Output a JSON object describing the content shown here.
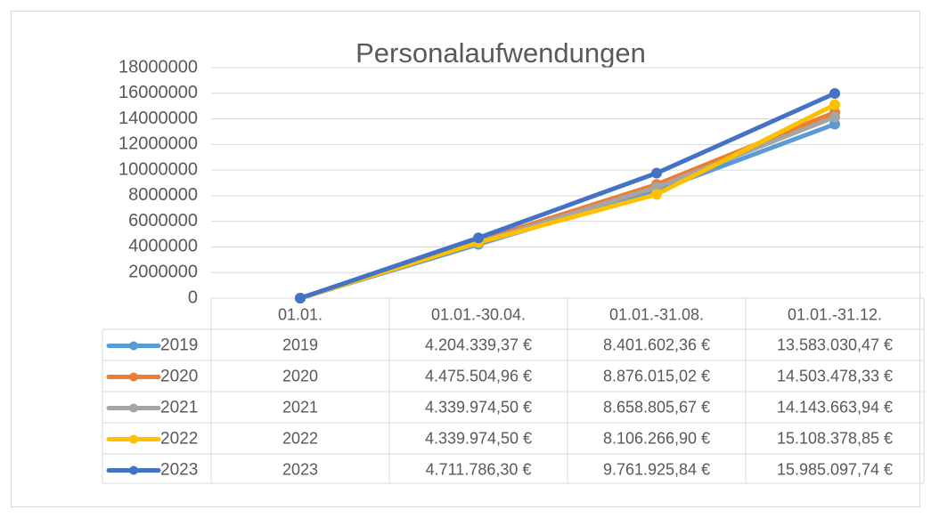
{
  "chart_data": {
    "type": "line",
    "title": "Personalaufwendungen",
    "categories": [
      "01.01.",
      "01.01.-30.04.",
      "01.01.-31.08.",
      "01.01.-31.12."
    ],
    "series": [
      {
        "name": "2019",
        "color": "#5b9bd5",
        "values": [
          0,
          4204339.37,
          8401602.36,
          13583030.47
        ]
      },
      {
        "name": "2020",
        "color": "#ed7d31",
        "values": [
          0,
          4475504.96,
          8876015.02,
          14503478.33
        ]
      },
      {
        "name": "2021",
        "color": "#a5a5a5",
        "values": [
          0,
          4339974.5,
          8658805.67,
          14143663.94
        ]
      },
      {
        "name": "2022",
        "color": "#ffc000",
        "values": [
          0,
          4339974.5,
          8106266.9,
          15108378.85
        ]
      },
      {
        "name": "2023",
        "color": "#4472c4",
        "values": [
          0,
          4711786.3,
          9761925.84,
          15985097.74
        ]
      }
    ],
    "ylim": [
      0,
      18000000
    ],
    "yticks": [
      0,
      2000000,
      4000000,
      6000000,
      8000000,
      10000000,
      12000000,
      14000000,
      16000000,
      18000000
    ],
    "grid": true,
    "table": {
      "rows": [
        [
          "2019",
          "4.204.339,37 €",
          "8.401.602,36 €",
          "13.583.030,47 €"
        ],
        [
          "2020",
          "4.475.504,96 €",
          "8.876.015,02 €",
          "14.503.478,33 €"
        ],
        [
          "2021",
          "4.339.974,50 €",
          "8.658.805,67 €",
          "14.143.663,94 €"
        ],
        [
          "2022",
          "4.339.974,50 €",
          "8.106.266,90 €",
          "15.108.378,85 €"
        ],
        [
          "2023",
          "4.711.786,30 €",
          "9.761.925,84 €",
          "15.985.097,74 €"
        ]
      ]
    }
  }
}
